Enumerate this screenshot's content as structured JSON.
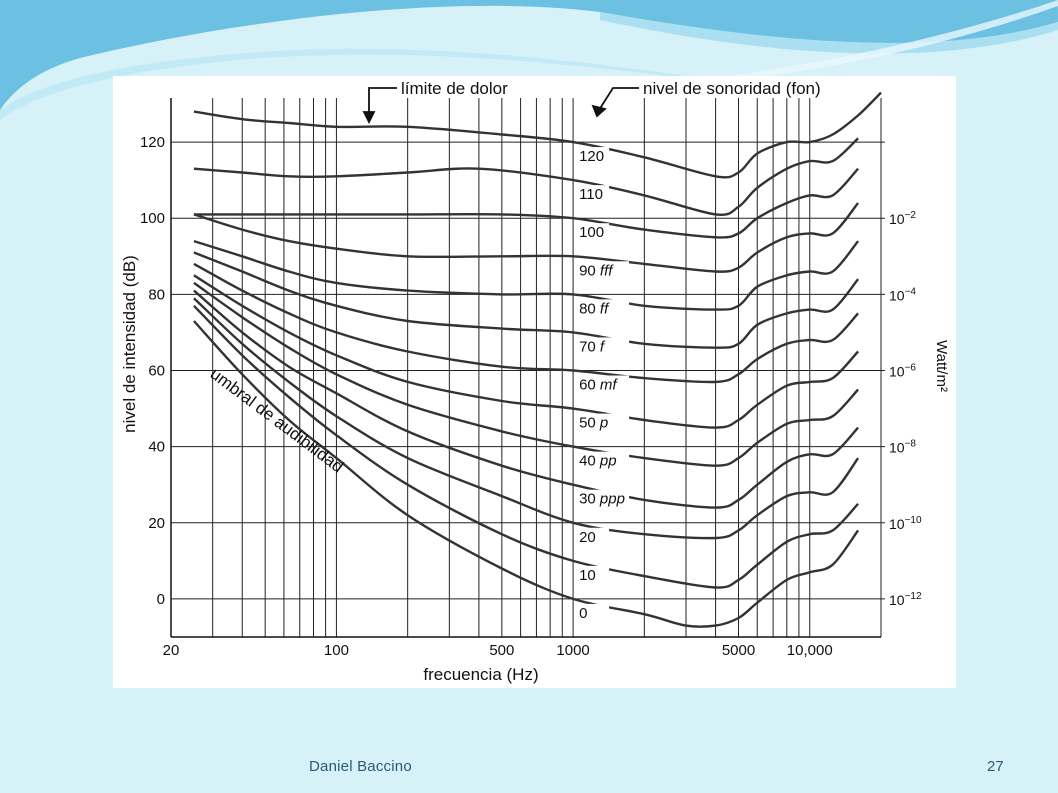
{
  "slide": {
    "footer_author": "Daniel  Baccino",
    "page_number": "27",
    "colors": {
      "background": "#d6f1f8",
      "wave_dark": "#4aa9d8",
      "wave_light": "#a9dff0",
      "curve": "#333333"
    }
  },
  "chart_data": {
    "type": "line",
    "title": "",
    "xlabel": "frecuencia (Hz)",
    "ylabel": "nivel de intensidad (dB)",
    "y2label": "Watt/m²",
    "x_scale": "log",
    "xlim": [
      20,
      20000
    ],
    "ylim": [
      -10,
      130
    ],
    "grid": true,
    "x_ticks": [
      {
        "value": 20,
        "label": "20"
      },
      {
        "value": 100,
        "label": "100"
      },
      {
        "value": 500,
        "label": "500"
      },
      {
        "value": 1000,
        "label": "1000"
      },
      {
        "value": 5000,
        "label": "5000"
      },
      {
        "value": 10000,
        "label": "10,000"
      }
    ],
    "y_ticks": [
      0,
      20,
      40,
      60,
      80,
      100,
      120
    ],
    "y2_ticks": [
      {
        "db": 0,
        "base": "10",
        "exp": "−12"
      },
      {
        "db": 20,
        "base": "10",
        "exp": "−10"
      },
      {
        "db": 40,
        "base": "10",
        "exp": "−8"
      },
      {
        "db": 60,
        "base": "10",
        "exp": "−6"
      },
      {
        "db": 80,
        "base": "10",
        "exp": "−4"
      },
      {
        "db": 100,
        "base": "10",
        "exp": "−2"
      }
    ],
    "annotations": {
      "pain": "límite de dolor",
      "loudness": "nivel de sonoridad  (fon)",
      "threshold": "umbral de audibilidad"
    },
    "series": [
      {
        "phon": 0,
        "label": "0",
        "dyn": "",
        "points": [
          [
            25,
            73
          ],
          [
            40,
            59
          ],
          [
            63,
            47
          ],
          [
            100,
            37
          ],
          [
            200,
            22
          ],
          [
            500,
            8
          ],
          [
            1000,
            0
          ],
          [
            2000,
            -4
          ],
          [
            3000,
            -7
          ],
          [
            4000,
            -7
          ],
          [
            5000,
            -5
          ],
          [
            6000,
            -1
          ],
          [
            8000,
            5
          ],
          [
            10000,
            7
          ],
          [
            12500,
            9
          ],
          [
            16000,
            18
          ]
        ]
      },
      {
        "phon": 10,
        "label": "10",
        "dyn": "",
        "points": [
          [
            25,
            77
          ],
          [
            40,
            64
          ],
          [
            63,
            53
          ],
          [
            100,
            43
          ],
          [
            200,
            30
          ],
          [
            500,
            17
          ],
          [
            1000,
            10
          ],
          [
            2000,
            6
          ],
          [
            4000,
            3
          ],
          [
            5000,
            5
          ],
          [
            6000,
            9
          ],
          [
            8000,
            15
          ],
          [
            10000,
            17
          ],
          [
            12500,
            18
          ],
          [
            16000,
            25
          ]
        ]
      },
      {
        "phon": 20,
        "label": "20",
        "dyn": "",
        "points": [
          [
            25,
            79
          ],
          [
            40,
            67
          ],
          [
            63,
            57
          ],
          [
            100,
            48
          ],
          [
            200,
            37
          ],
          [
            500,
            27
          ],
          [
            1000,
            20
          ],
          [
            2000,
            17
          ],
          [
            4000,
            16
          ],
          [
            5000,
            18
          ],
          [
            6000,
            22
          ],
          [
            8000,
            27
          ],
          [
            10000,
            28
          ],
          [
            12500,
            28
          ],
          [
            16000,
            37
          ]
        ]
      },
      {
        "phon": 30,
        "label": "30",
        "dyn": "ppp",
        "points": [
          [
            25,
            81
          ],
          [
            40,
            70
          ],
          [
            63,
            61
          ],
          [
            100,
            54
          ],
          [
            200,
            44
          ],
          [
            500,
            35
          ],
          [
            1000,
            30
          ],
          [
            2000,
            26
          ],
          [
            4000,
            24
          ],
          [
            5000,
            26
          ],
          [
            6000,
            30
          ],
          [
            8000,
            36
          ],
          [
            10000,
            38
          ],
          [
            12500,
            38
          ],
          [
            16000,
            45
          ]
        ]
      },
      {
        "phon": 40,
        "label": "40",
        "dyn": "pp",
        "points": [
          [
            25,
            83
          ],
          [
            40,
            74
          ],
          [
            63,
            66
          ],
          [
            100,
            59
          ],
          [
            200,
            51
          ],
          [
            500,
            44
          ],
          [
            1000,
            40
          ],
          [
            2000,
            37
          ],
          [
            4000,
            35
          ],
          [
            5000,
            37
          ],
          [
            6000,
            41
          ],
          [
            8000,
            46
          ],
          [
            10000,
            47
          ],
          [
            12500,
            48
          ],
          [
            16000,
            55
          ]
        ]
      },
      {
        "phon": 50,
        "label": "50",
        "dyn": "p",
        "points": [
          [
            25,
            85
          ],
          [
            40,
            77
          ],
          [
            63,
            70
          ],
          [
            100,
            64
          ],
          [
            200,
            57
          ],
          [
            500,
            52
          ],
          [
            1000,
            50
          ],
          [
            2000,
            47
          ],
          [
            4000,
            45
          ],
          [
            5000,
            47
          ],
          [
            6000,
            51
          ],
          [
            8000,
            56
          ],
          [
            10000,
            57
          ],
          [
            12500,
            58
          ],
          [
            16000,
            65
          ]
        ]
      },
      {
        "phon": 60,
        "label": "60",
        "dyn": "mf",
        "points": [
          [
            25,
            88
          ],
          [
            40,
            81
          ],
          [
            63,
            75
          ],
          [
            100,
            70
          ],
          [
            200,
            65
          ],
          [
            500,
            61
          ],
          [
            1000,
            60
          ],
          [
            2000,
            58
          ],
          [
            4000,
            57
          ],
          [
            5000,
            59
          ],
          [
            6000,
            63
          ],
          [
            8000,
            67
          ],
          [
            10000,
            68
          ],
          [
            12500,
            68
          ],
          [
            16000,
            75
          ]
        ]
      },
      {
        "phon": 70,
        "label": "70",
        "dyn": "f",
        "points": [
          [
            25,
            91
          ],
          [
            40,
            86
          ],
          [
            63,
            81
          ],
          [
            100,
            77
          ],
          [
            200,
            73
          ],
          [
            500,
            71
          ],
          [
            1000,
            70
          ],
          [
            2000,
            67
          ],
          [
            4000,
            66
          ],
          [
            5000,
            67
          ],
          [
            6000,
            72
          ],
          [
            8000,
            75
          ],
          [
            10000,
            76
          ],
          [
            12500,
            76
          ],
          [
            16000,
            84
          ]
        ]
      },
      {
        "phon": 80,
        "label": "80",
        "dyn": "ff",
        "points": [
          [
            25,
            94
          ],
          [
            40,
            90
          ],
          [
            63,
            86
          ],
          [
            100,
            83
          ],
          [
            200,
            81
          ],
          [
            500,
            80
          ],
          [
            1000,
            80
          ],
          [
            2000,
            77
          ],
          [
            4000,
            76
          ],
          [
            5000,
            77
          ],
          [
            6000,
            82
          ],
          [
            8000,
            85
          ],
          [
            10000,
            86
          ],
          [
            12500,
            86
          ],
          [
            16000,
            94
          ]
        ]
      },
      {
        "phon": 90,
        "label": "90",
        "dyn": "fff",
        "points": [
          [
            25,
            101
          ],
          [
            40,
            97
          ],
          [
            63,
            94
          ],
          [
            100,
            92
          ],
          [
            200,
            90
          ],
          [
            500,
            90
          ],
          [
            1000,
            90
          ],
          [
            2000,
            88
          ],
          [
            4000,
            86
          ],
          [
            5000,
            87
          ],
          [
            6000,
            91
          ],
          [
            8000,
            95
          ],
          [
            10000,
            96
          ],
          [
            12500,
            96
          ],
          [
            16000,
            104
          ]
        ]
      },
      {
        "phon": 100,
        "label": "100",
        "dyn": "",
        "points": [
          [
            25,
            101
          ],
          [
            40,
            101
          ],
          [
            63,
            101
          ],
          [
            100,
            101
          ],
          [
            200,
            101
          ],
          [
            500,
            101
          ],
          [
            1000,
            100
          ],
          [
            2000,
            97
          ],
          [
            4000,
            95
          ],
          [
            5000,
            96
          ],
          [
            6000,
            100
          ],
          [
            8000,
            104
          ],
          [
            10000,
            106
          ],
          [
            12500,
            106
          ],
          [
            16000,
            113
          ]
        ]
      },
      {
        "phon": 110,
        "label": "110",
        "dyn": "",
        "points": [
          [
            25,
            113
          ],
          [
            40,
            112
          ],
          [
            63,
            111
          ],
          [
            100,
            111
          ],
          [
            200,
            112
          ],
          [
            400,
            113
          ],
          [
            1000,
            110
          ],
          [
            2000,
            106
          ],
          [
            4000,
            101
          ],
          [
            5000,
            103
          ],
          [
            6000,
            108
          ],
          [
            8000,
            113
          ],
          [
            10000,
            115
          ],
          [
            12500,
            115
          ],
          [
            16000,
            121
          ]
        ]
      },
      {
        "phon": 120,
        "label": "120",
        "dyn": "",
        "points": [
          [
            25,
            128
          ],
          [
            40,
            126
          ],
          [
            63,
            125
          ],
          [
            100,
            124
          ],
          [
            200,
            124
          ],
          [
            500,
            122
          ],
          [
            1000,
            120
          ],
          [
            2000,
            116
          ],
          [
            4000,
            111
          ],
          [
            5000,
            112
          ],
          [
            6000,
            117
          ],
          [
            8000,
            120
          ],
          [
            10000,
            120
          ],
          [
            12500,
            122
          ],
          [
            16000,
            127
          ],
          [
            20000,
            133
          ]
        ]
      }
    ]
  }
}
